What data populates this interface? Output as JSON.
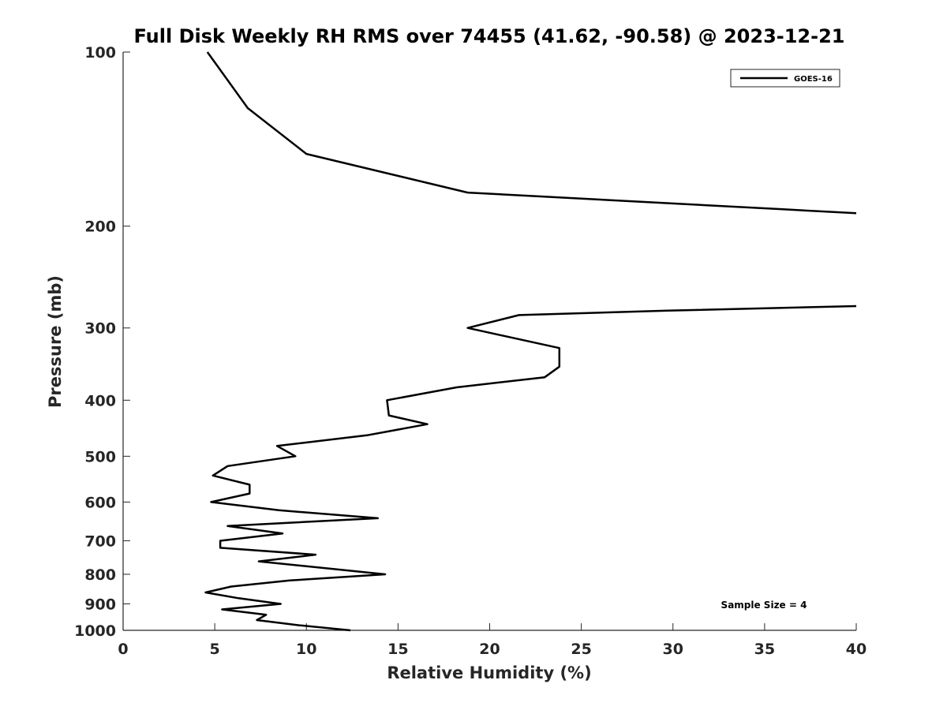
{
  "chart_data": {
    "type": "line",
    "title": "Full Disk Weekly RH RMS over 74455 (41.62, -90.58) @ 2023-12-21",
    "xlabel": "Relative Humidity (%)",
    "ylabel": "Pressure (mb)",
    "xlim": [
      0,
      40
    ],
    "ylim": [
      100,
      1000
    ],
    "y_scale": "log",
    "y_reversed": true,
    "grid": false,
    "legend_position": "top-right",
    "x_ticks": [
      0,
      5,
      10,
      15,
      20,
      25,
      30,
      35,
      40
    ],
    "y_ticks": [
      100,
      200,
      300,
      400,
      500,
      600,
      700,
      800,
      900,
      1000
    ],
    "annotation": "Sample Size = 4",
    "series": [
      {
        "name": "GOES-16",
        "color": "#000000",
        "segments": [
          [
            {
              "x": 4.6,
              "p": 100
            },
            {
              "x": 6.8,
              "p": 125
            },
            {
              "x": 10.0,
              "p": 150
            },
            {
              "x": 18.8,
              "p": 175
            },
            {
              "x": 36.0,
              "p": 187
            },
            {
              "x": 40.0,
              "p": 190
            }
          ],
          [
            {
              "x": 40.0,
              "p": 275
            },
            {
              "x": 29.7,
              "p": 280
            },
            {
              "x": 21.6,
              "p": 285
            },
            {
              "x": 18.8,
              "p": 300
            },
            {
              "x": 23.8,
              "p": 325
            },
            {
              "x": 23.8,
              "p": 350
            },
            {
              "x": 23.0,
              "p": 365
            },
            {
              "x": 18.2,
              "p": 380
            },
            {
              "x": 14.4,
              "p": 400
            },
            {
              "x": 14.5,
              "p": 425
            },
            {
              "x": 16.6,
              "p": 440
            },
            {
              "x": 13.3,
              "p": 460
            },
            {
              "x": 8.4,
              "p": 480
            },
            {
              "x": 9.4,
              "p": 500
            },
            {
              "x": 5.7,
              "p": 520
            },
            {
              "x": 4.9,
              "p": 540
            },
            {
              "x": 6.9,
              "p": 560
            },
            {
              "x": 6.9,
              "p": 580
            },
            {
              "x": 4.8,
              "p": 600
            },
            {
              "x": 8.5,
              "p": 620
            },
            {
              "x": 13.9,
              "p": 640
            },
            {
              "x": 5.7,
              "p": 660
            },
            {
              "x": 8.7,
              "p": 680
            },
            {
              "x": 5.3,
              "p": 700
            },
            {
              "x": 5.3,
              "p": 720
            },
            {
              "x": 10.5,
              "p": 740
            },
            {
              "x": 7.4,
              "p": 760
            },
            {
              "x": 14.3,
              "p": 800
            },
            {
              "x": 9.1,
              "p": 820
            },
            {
              "x": 5.9,
              "p": 840
            },
            {
              "x": 4.5,
              "p": 860
            },
            {
              "x": 6.3,
              "p": 880
            },
            {
              "x": 8.6,
              "p": 900
            },
            {
              "x": 5.4,
              "p": 920
            },
            {
              "x": 7.8,
              "p": 940
            },
            {
              "x": 7.3,
              "p": 960
            },
            {
              "x": 9.6,
              "p": 980
            },
            {
              "x": 12.4,
              "p": 1000
            }
          ]
        ]
      }
    ]
  }
}
